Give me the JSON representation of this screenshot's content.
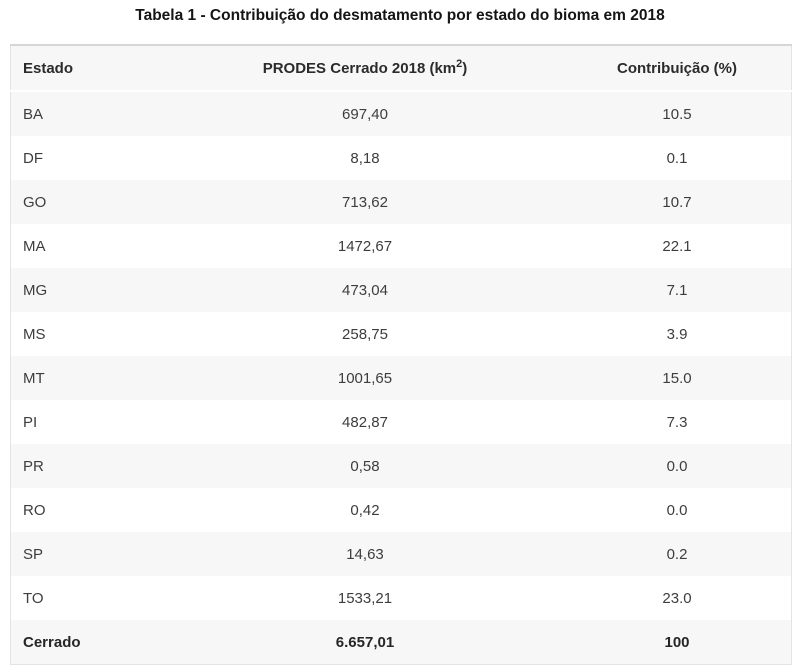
{
  "chart_data": {
    "type": "table",
    "title": "Tabela 1 - Contribuição do desmatamento por estado do bioma em 2018",
    "columns": [
      "Estado",
      "PRODES Cerrado 2018 (km²)",
      "Contribuição (%)"
    ],
    "rows": [
      [
        "BA",
        "697,40",
        "10.5"
      ],
      [
        "DF",
        "8,18",
        "0.1"
      ],
      [
        "GO",
        "713,62",
        "10.7"
      ],
      [
        "MA",
        "1472,67",
        "22.1"
      ],
      [
        "MG",
        "473,04",
        "7.1"
      ],
      [
        "MS",
        "258,75",
        "3.9"
      ],
      [
        "MT",
        "1001,65",
        "15.0"
      ],
      [
        "PI",
        "482,87",
        "7.3"
      ],
      [
        "PR",
        "0,58",
        "0.0"
      ],
      [
        "RO",
        "0,42",
        "0.0"
      ],
      [
        "SP",
        "14,63",
        "0.2"
      ],
      [
        "TO",
        "1533,21",
        "23.0"
      ]
    ],
    "total_row": [
      "Cerrado",
      "6.657,01",
      "100"
    ]
  },
  "header_parts": {
    "prodes_prefix": "PRODES Cerrado 2018 (km",
    "prodes_sup": "2",
    "prodes_suffix": ")"
  },
  "colors": {
    "stripe_row_bg": "#f7f7f7",
    "white_row_bg": "#ffffff",
    "table_border": "#e4e4e4",
    "table_top_border": "#d6d6d6",
    "body_text": "#3d3d3d",
    "header_text": "#2b2b2b"
  }
}
